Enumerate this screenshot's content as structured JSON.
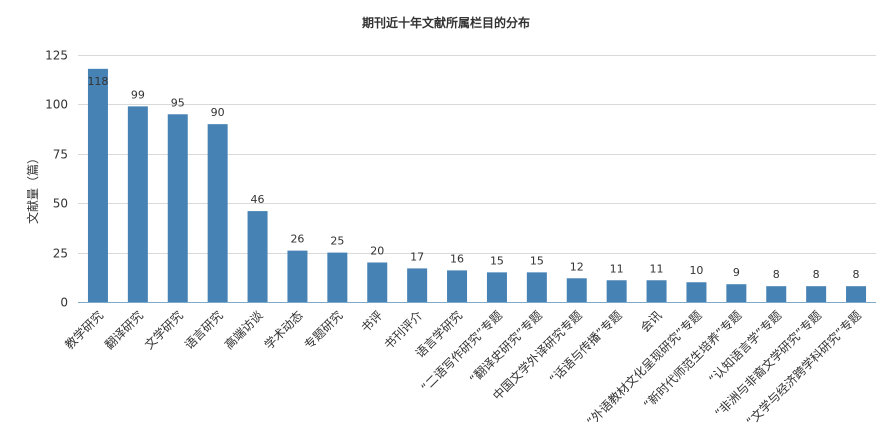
{
  "chart_data": {
    "type": "bar",
    "title": "期刊近十年文献所属栏目的分布",
    "xlabel": "",
    "ylabel": "文献量（篇）",
    "ylim": [
      0,
      125
    ],
    "yticks": [
      0,
      25,
      50,
      75,
      100,
      125
    ],
    "grid": true,
    "colors": {
      "bar": "#4682b4"
    },
    "categories": [
      "教学研究",
      "翻译研究",
      "文学研究",
      "语言研究",
      "高端访谈",
      "学术动态",
      "专题研究",
      "书评",
      "书刊评介",
      "语言学研究",
      "“二语写作研究”专题",
      "“翻译史研究”专题",
      "中国文学外译研究专题",
      "“话语与传播”专题",
      "会讯",
      "“外语教材文化呈现研究”专题",
      "“新时代师范生培养”专题",
      "“认知语言学”专题",
      "“非洲与非裔文学研究”专题",
      "“文学与经济跨学科研究”专题"
    ],
    "values": [
      118,
      99,
      95,
      90,
      46,
      26,
      25,
      20,
      17,
      16,
      15,
      15,
      12,
      11,
      11,
      10,
      9,
      8,
      8,
      8
    ]
  }
}
